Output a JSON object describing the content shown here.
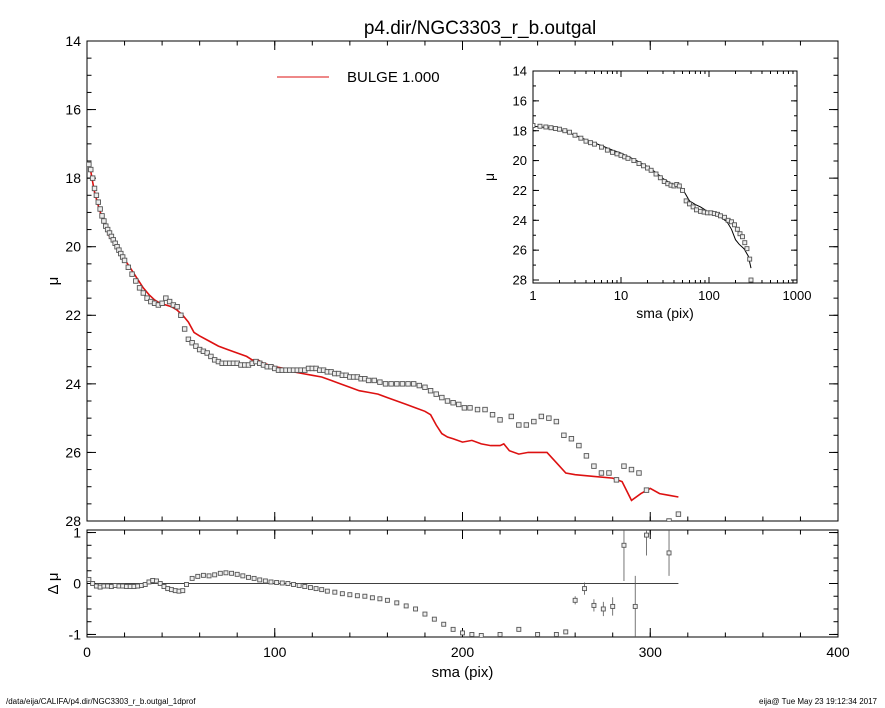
{
  "figure": {
    "title": "p4.dir/NGC3303_r_b.outgal",
    "footer_left": "/data/eija/CALIFA/p4.dir/NGC3303_r_b.outgal_1dprof",
    "footer_right": "eija@  Tue May 23 19:12:34 2017"
  },
  "colors": {
    "model": "#dd1111",
    "points": "#555555",
    "axes": "#000000"
  },
  "chart_data": [
    {
      "id": "main-profile",
      "type": "scatter",
      "xlabel": "",
      "ylabel": "μ",
      "xlim": [
        0,
        400
      ],
      "ylim": [
        28,
        14
      ],
      "y_inverted": true,
      "xticks": [
        0,
        100,
        200,
        300,
        400
      ],
      "yticks": [
        14,
        16,
        18,
        20,
        22,
        24,
        26,
        28
      ],
      "legend": {
        "label": "BULGE  1.000",
        "placement": "top-center"
      },
      "series": [
        {
          "name": "BULGE  1.000",
          "kind": "line",
          "x": [
            1,
            2,
            3,
            4,
            6,
            8,
            10,
            12,
            15,
            18,
            21,
            24,
            27,
            30,
            33,
            36,
            39,
            42,
            45,
            48,
            51,
            54,
            57,
            60,
            65,
            70,
            75,
            80,
            85,
            88,
            91,
            94,
            97,
            100,
            105,
            110,
            115,
            120,
            125,
            130,
            135,
            140,
            145,
            150,
            155,
            160,
            165,
            170,
            175,
            180,
            183,
            186,
            189,
            192,
            195,
            200,
            205,
            210,
            215,
            220,
            222,
            225,
            230,
            235,
            240,
            245,
            250,
            255,
            260,
            270,
            280,
            285,
            290,
            295,
            300,
            305,
            310,
            315
          ],
          "y": [
            17.7,
            17.8,
            18.1,
            18.4,
            18.8,
            19.15,
            19.45,
            19.7,
            19.95,
            20.2,
            20.45,
            20.7,
            20.95,
            21.2,
            21.4,
            21.55,
            21.65,
            21.7,
            21.75,
            21.85,
            22.0,
            22.2,
            22.5,
            22.6,
            22.75,
            22.9,
            23.0,
            23.1,
            23.2,
            23.3,
            23.3,
            23.4,
            23.45,
            23.5,
            23.55,
            23.65,
            23.7,
            23.75,
            23.8,
            23.9,
            24.0,
            24.1,
            24.2,
            24.25,
            24.3,
            24.4,
            24.5,
            24.6,
            24.7,
            24.8,
            24.9,
            25.2,
            25.45,
            25.55,
            25.6,
            25.7,
            25.65,
            25.75,
            25.8,
            25.8,
            25.75,
            25.95,
            26.05,
            26.0,
            26.0,
            26.0,
            26.3,
            26.6,
            26.65,
            26.7,
            26.75,
            26.85,
            27.4,
            27.2,
            27.05,
            27.2,
            27.25,
            27.3
          ]
        },
        {
          "name": "",
          "kind": "points",
          "x": [
            1,
            2,
            3,
            4,
            5,
            6,
            7,
            8,
            9,
            10,
            11,
            12,
            13,
            14,
            15,
            16,
            17,
            18,
            19,
            20,
            22,
            24,
            26,
            28,
            30,
            32,
            34,
            36,
            38,
            40,
            42,
            44,
            46,
            48,
            50,
            52,
            54,
            56,
            58,
            60,
            62,
            64,
            66,
            68,
            70,
            72,
            74,
            76,
            78,
            80,
            82,
            84,
            86,
            88,
            90,
            92,
            94,
            96,
            98,
            100,
            102,
            104,
            106,
            108,
            110,
            112,
            114,
            116,
            118,
            120,
            122,
            124,
            126,
            128,
            130,
            132,
            134,
            136,
            138,
            140,
            142,
            144,
            146,
            148,
            150,
            153,
            156,
            159,
            162,
            165,
            168,
            171,
            174,
            177,
            180,
            183,
            186,
            189,
            192,
            195,
            198,
            201,
            204,
            208,
            212,
            216,
            220,
            226,
            230,
            234,
            238,
            242,
            246,
            250,
            254,
            258,
            262,
            266,
            270,
            274,
            278,
            282,
            286,
            290,
            294,
            298,
            302,
            306,
            310,
            315
          ],
          "y": [
            17.6,
            17.75,
            18.0,
            18.3,
            18.5,
            18.7,
            18.9,
            19.1,
            19.25,
            19.4,
            19.5,
            19.6,
            19.7,
            19.8,
            19.9,
            20.0,
            20.1,
            20.2,
            20.3,
            20.4,
            20.6,
            20.8,
            21.0,
            21.2,
            21.35,
            21.5,
            21.6,
            21.65,
            21.7,
            21.65,
            21.5,
            21.6,
            21.7,
            21.75,
            22.0,
            22.4,
            22.7,
            22.8,
            22.9,
            23.0,
            23.05,
            23.1,
            23.2,
            23.3,
            23.35,
            23.4,
            23.4,
            23.4,
            23.4,
            23.4,
            23.45,
            23.45,
            23.45,
            23.4,
            23.35,
            23.4,
            23.45,
            23.5,
            23.5,
            23.55,
            23.6,
            23.6,
            23.6,
            23.6,
            23.6,
            23.6,
            23.6,
            23.6,
            23.55,
            23.55,
            23.55,
            23.6,
            23.6,
            23.65,
            23.65,
            23.7,
            23.7,
            23.75,
            23.75,
            23.8,
            23.8,
            23.8,
            23.85,
            23.85,
            23.9,
            23.9,
            23.95,
            24.0,
            24.0,
            24.0,
            24.0,
            24.0,
            24.0,
            24.05,
            24.1,
            24.2,
            24.3,
            24.4,
            24.5,
            24.55,
            24.6,
            24.7,
            24.7,
            24.75,
            24.75,
            24.9,
            25.05,
            24.95,
            25.2,
            25.2,
            25.1,
            24.95,
            25.0,
            25.1,
            25.5,
            25.6,
            25.8,
            26.1,
            26.4,
            26.6,
            26.6,
            26.8,
            26.4,
            26.5,
            26.6,
            27.1,
            28.2,
            28.1,
            28.0,
            27.8
          ]
        }
      ]
    },
    {
      "id": "residuals",
      "type": "scatter",
      "xlabel": "sma (pix)",
      "ylabel": "Δ μ",
      "xlim": [
        0,
        400
      ],
      "ylim": [
        -1.05,
        1.05
      ],
      "xticks": [
        0,
        100,
        200,
        300,
        400
      ],
      "yticks": [
        -1,
        0,
        1
      ],
      "reference_line": 0,
      "series": [
        {
          "name": "",
          "kind": "points",
          "x": [
            1,
            3,
            5,
            7,
            9,
            11,
            13,
            15,
            17,
            19,
            21,
            23,
            25,
            27,
            29,
            31,
            33,
            35,
            37,
            39,
            41,
            43,
            45,
            47,
            49,
            51,
            53,
            56,
            59,
            62,
            65,
            68,
            71,
            74,
            77,
            80,
            83,
            86,
            89,
            92,
            95,
            98,
            101,
            104,
            107,
            110,
            113,
            116,
            119,
            122,
            125,
            128,
            132,
            136,
            140,
            144,
            148,
            152,
            156,
            160,
            165,
            170,
            175,
            180,
            185,
            190,
            195,
            200,
            205,
            210,
            220,
            230,
            240,
            250,
            255,
            260,
            265,
            270,
            275,
            280,
            286,
            292,
            298,
            310
          ],
          "y": [
            0.08,
            0.0,
            -0.05,
            -0.07,
            -0.05,
            -0.05,
            -0.06,
            -0.04,
            -0.05,
            -0.05,
            -0.06,
            -0.06,
            -0.06,
            -0.05,
            -0.04,
            -0.02,
            0.03,
            0.06,
            0.05,
            0.0,
            -0.06,
            -0.1,
            -0.12,
            -0.14,
            -0.15,
            -0.14,
            -0.02,
            0.1,
            0.14,
            0.16,
            0.15,
            0.17,
            0.2,
            0.21,
            0.2,
            0.18,
            0.15,
            0.12,
            0.1,
            0.07,
            0.05,
            0.03,
            0.02,
            0.01,
            0.0,
            -0.02,
            -0.04,
            -0.06,
            -0.08,
            -0.1,
            -0.12,
            -0.15,
            -0.17,
            -0.2,
            -0.22,
            -0.24,
            -0.25,
            -0.28,
            -0.3,
            -0.33,
            -0.38,
            -0.44,
            -0.5,
            -0.6,
            -0.7,
            -0.8,
            -0.9,
            -0.97,
            -1.0,
            -1.02,
            -1.0,
            -0.9,
            -1.0,
            -1.0,
            -0.95,
            -0.33,
            -0.1,
            -0.43,
            -0.5,
            -0.45,
            0.75,
            -0.45,
            0.95,
            0.6
          ],
          "err": [
            0,
            0,
            0,
            0,
            0,
            0,
            0,
            0,
            0,
            0,
            0,
            0,
            0,
            0,
            0,
            0,
            0,
            0,
            0,
            0,
            0,
            0,
            0,
            0,
            0,
            0,
            0,
            0,
            0,
            0,
            0,
            0,
            0,
            0,
            0,
            0,
            0,
            0,
            0,
            0,
            0,
            0,
            0,
            0,
            0,
            0,
            0,
            0,
            0,
            0,
            0,
            0,
            0,
            0,
            0,
            0,
            0,
            0,
            0,
            0,
            0,
            0,
            0,
            0,
            0,
            0,
            0,
            0,
            0,
            0,
            0,
            0,
            0,
            0,
            0,
            0.08,
            0.12,
            0.12,
            0.14,
            0.18,
            0.7,
            0.6,
            0.4,
            0.45
          ]
        }
      ]
    },
    {
      "id": "inset-loglog",
      "type": "scatter",
      "xlabel": "sma (pix)",
      "ylabel": "μ",
      "x_scale": "log",
      "xlim": [
        1,
        1000
      ],
      "ylim": [
        28.2,
        14
      ],
      "y_inverted": true,
      "xticks": [
        1,
        10,
        100,
        1000
      ],
      "xticklabels": [
        "1",
        "10",
        "100",
        "1000"
      ],
      "yticks": [
        14,
        16,
        18,
        20,
        22,
        24,
        26,
        28
      ],
      "series": [
        {
          "name": "",
          "kind": "line",
          "x": [
            1,
            1.5,
            2,
            3,
            4,
            6,
            8,
            10,
            15,
            20,
            25,
            30,
            35,
            40,
            45,
            50,
            60,
            70,
            80,
            90,
            100,
            120,
            140,
            160,
            180,
            200,
            220,
            250,
            280,
            300
          ],
          "y": [
            17.7,
            17.8,
            17.95,
            18.3,
            18.6,
            19.0,
            19.3,
            19.5,
            20.0,
            20.4,
            20.8,
            21.2,
            21.45,
            21.65,
            21.7,
            21.9,
            22.7,
            22.95,
            23.1,
            23.3,
            23.5,
            23.6,
            23.85,
            24.1,
            24.6,
            25.3,
            25.6,
            25.9,
            26.4,
            27.2
          ]
        },
        {
          "name": "",
          "kind": "points",
          "x": [
            1,
            1.2,
            1.4,
            1.6,
            1.8,
            2,
            2.3,
            2.6,
            3,
            3.5,
            4,
            4.5,
            5,
            6,
            7,
            8,
            9,
            10,
            11,
            12,
            14,
            16,
            18,
            20,
            22,
            25,
            28,
            31,
            34,
            37,
            40,
            43,
            46,
            50,
            55,
            60,
            66,
            72,
            80,
            88,
            96,
            105,
            115,
            125,
            135,
            150,
            165,
            180,
            195,
            210,
            225,
            240,
            255,
            270,
            290,
            300
          ],
          "y": [
            17.65,
            17.7,
            17.75,
            17.8,
            17.85,
            17.9,
            18.0,
            18.1,
            18.3,
            18.5,
            18.7,
            18.8,
            18.9,
            19.1,
            19.3,
            19.45,
            19.55,
            19.65,
            19.75,
            19.85,
            20.0,
            20.2,
            20.35,
            20.5,
            20.65,
            20.9,
            21.15,
            21.4,
            21.55,
            21.65,
            21.7,
            21.6,
            21.7,
            22.0,
            22.7,
            22.9,
            23.1,
            23.3,
            23.4,
            23.45,
            23.5,
            23.5,
            23.55,
            23.6,
            23.7,
            23.8,
            24.0,
            24.1,
            24.3,
            24.6,
            24.9,
            25.1,
            25.5,
            25.9,
            26.6,
            28.0
          ]
        }
      ]
    }
  ]
}
